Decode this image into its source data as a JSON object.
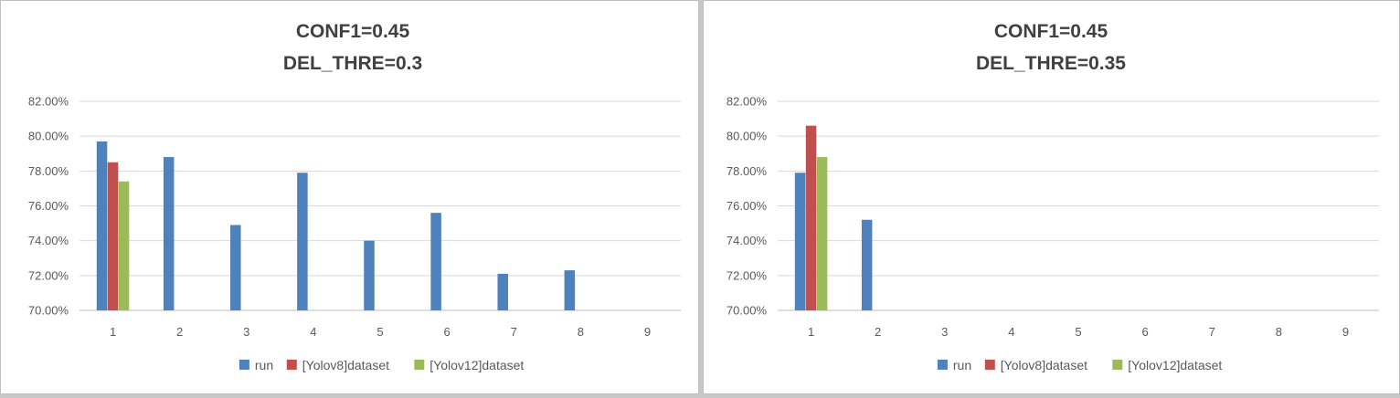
{
  "chart_data": [
    {
      "type": "bar",
      "title_lines": [
        "CONF1=0.45",
        "DEL_THRE=0.3"
      ],
      "categories": [
        "1",
        "2",
        "3",
        "4",
        "5",
        "6",
        "7",
        "8",
        "9"
      ],
      "ylim": [
        0.7,
        0.82
      ],
      "yticks": [
        0.7,
        0.72,
        0.74,
        0.76,
        0.78,
        0.8,
        0.82
      ],
      "ytick_labels": [
        "70.00%",
        "72.00%",
        "74.00%",
        "76.00%",
        "78.00%",
        "80.00%",
        "82.00%"
      ],
      "grid": true,
      "legend_position": "bottom",
      "series": [
        {
          "name": "run",
          "color": "#4f81bd",
          "values": [
            0.797,
            0.788,
            0.749,
            0.779,
            0.74,
            0.756,
            0.721,
            0.723,
            null
          ]
        },
        {
          "name": "[Yolov8]dataset",
          "color": "#c0504d",
          "values": [
            0.785,
            null,
            null,
            null,
            null,
            null,
            null,
            null,
            null
          ]
        },
        {
          "name": "[Yolov12]dataset",
          "color": "#9bbb59",
          "values": [
            0.774,
            null,
            null,
            null,
            null,
            null,
            null,
            null,
            null
          ]
        }
      ]
    },
    {
      "type": "bar",
      "title_lines": [
        "CONF1=0.45",
        "DEL_THRE=0.35"
      ],
      "categories": [
        "1",
        "2",
        "3",
        "4",
        "5",
        "6",
        "7",
        "8",
        "9"
      ],
      "ylim": [
        0.7,
        0.82
      ],
      "yticks": [
        0.7,
        0.72,
        0.74,
        0.76,
        0.78,
        0.8,
        0.82
      ],
      "ytick_labels": [
        "70.00%",
        "72.00%",
        "74.00%",
        "76.00%",
        "78.00%",
        "80.00%",
        "82.00%"
      ],
      "grid": true,
      "legend_position": "bottom",
      "series": [
        {
          "name": "run",
          "color": "#4f81bd",
          "values": [
            0.779,
            0.752,
            null,
            null,
            null,
            null,
            null,
            null,
            null
          ]
        },
        {
          "name": "[Yolov8]dataset",
          "color": "#c0504d",
          "values": [
            0.806,
            null,
            null,
            null,
            null,
            null,
            null,
            null,
            null
          ]
        },
        {
          "name": "[Yolov12]dataset",
          "color": "#9bbb59",
          "values": [
            0.788,
            null,
            null,
            null,
            null,
            null,
            null,
            null,
            null
          ]
        }
      ]
    }
  ]
}
